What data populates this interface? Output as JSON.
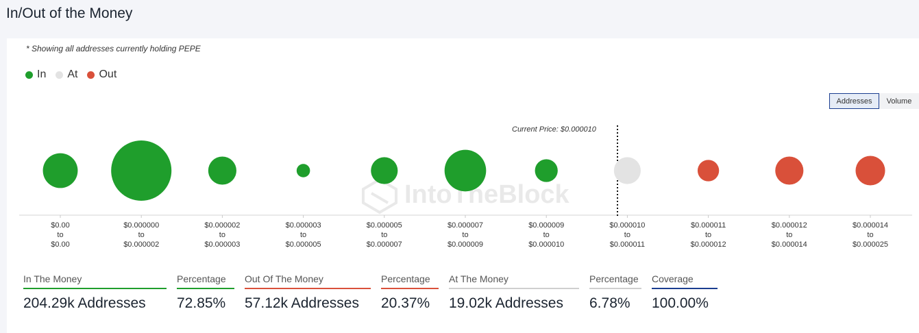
{
  "title": "In/Out of the Money",
  "note": "* Showing all addresses currently holding PEPE",
  "legend": [
    {
      "label": "In",
      "color": "#1f9e2c"
    },
    {
      "label": "At",
      "color": "#e3e3e3"
    },
    {
      "label": "Out",
      "color": "#d9503a"
    }
  ],
  "toggle": {
    "addresses": "Addresses",
    "volume": "Volume",
    "selected": "Addresses"
  },
  "current_price_label": "Current Price: $0.000010",
  "watermark": "IntoTheBlock",
  "chart_data": {
    "type": "bubble",
    "current_price_bucket": 7,
    "size_scale_max": 46,
    "categories": [
      {
        "from": "$0.00",
        "to": "$0.00",
        "status": "in",
        "size": 26
      },
      {
        "from": "$0.000000",
        "to": "$0.000002",
        "status": "in",
        "size": 45
      },
      {
        "from": "$0.000002",
        "to": "$0.000003",
        "status": "in",
        "size": 21
      },
      {
        "from": "$0.000003",
        "to": "$0.000005",
        "status": "in",
        "size": 10
      },
      {
        "from": "$0.000005",
        "to": "$0.000007",
        "status": "in",
        "size": 20
      },
      {
        "from": "$0.000007",
        "to": "$0.000009",
        "status": "in",
        "size": 31
      },
      {
        "from": "$0.000009",
        "to": "$0.000010",
        "status": "in",
        "size": 17
      },
      {
        "from": "$0.000010",
        "to": "$0.000011",
        "status": "at",
        "size": 20
      },
      {
        "from": "$0.000011",
        "to": "$0.000012",
        "status": "out",
        "size": 16
      },
      {
        "from": "$0.000012",
        "to": "$0.000014",
        "status": "out",
        "size": 21
      },
      {
        "from": "$0.000014",
        "to": "$0.000025",
        "status": "out",
        "size": 22
      }
    ],
    "to_word": "to"
  },
  "stats": [
    {
      "label": "In The Money",
      "value": "204.29k Addresses",
      "color": "#1f9e2c"
    },
    {
      "label": "Percentage",
      "value": "72.85%",
      "color": "#1f9e2c"
    },
    {
      "label": "Out Of The Money",
      "value": "57.12k Addresses",
      "color": "#d9503a"
    },
    {
      "label": "Percentage",
      "value": "20.37%",
      "color": "#d9503a"
    },
    {
      "label": "At The Money",
      "value": "19.02k Addresses",
      "color": "#cfcfcf"
    },
    {
      "label": "Percentage",
      "value": "6.78%",
      "color": "#cfcfcf"
    },
    {
      "label": "Coverage",
      "value": "100.00%",
      "color": "#1a3d8f"
    }
  ]
}
